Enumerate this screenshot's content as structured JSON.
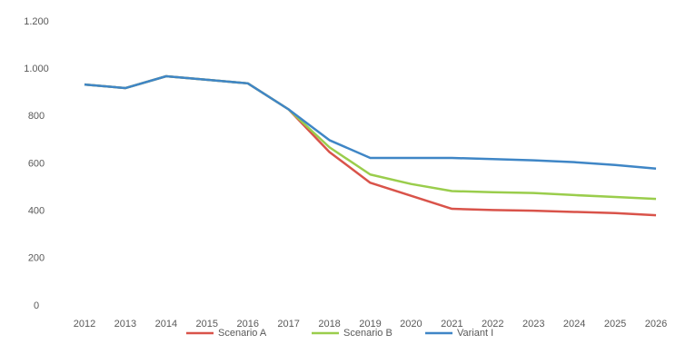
{
  "chart_data": {
    "type": "line",
    "categories": [
      "2012",
      "2013",
      "2014",
      "2015",
      "2016",
      "2017",
      "2018",
      "2019",
      "2020",
      "2021",
      "2022",
      "2023",
      "2024",
      "2025",
      "2026"
    ],
    "series": [
      {
        "name": "Scenario A",
        "color": "#d9534a",
        "values": [
          935,
          920,
          970,
          955,
          940,
          830,
          650,
          520,
          465,
          410,
          405,
          402,
          397,
          392,
          383
        ]
      },
      {
        "name": "Scenario B",
        "color": "#9acd4c",
        "values": [
          935,
          920,
          970,
          955,
          940,
          830,
          670,
          555,
          515,
          485,
          480,
          477,
          468,
          460,
          452
        ]
      },
      {
        "name": "Variant I",
        "color": "#3f86c6",
        "values": [
          935,
          920,
          970,
          955,
          940,
          830,
          700,
          625,
          625,
          625,
          620,
          615,
          607,
          595,
          580
        ]
      }
    ],
    "ylim": [
      0,
      1200
    ],
    "yticks": [
      0,
      200,
      400,
      600,
      800,
      {
        "value": 1000,
        "label": "1.000"
      },
      {
        "value": 1200,
        "label": "1.200"
      }
    ],
    "grid": false,
    "legend": "bottom"
  }
}
